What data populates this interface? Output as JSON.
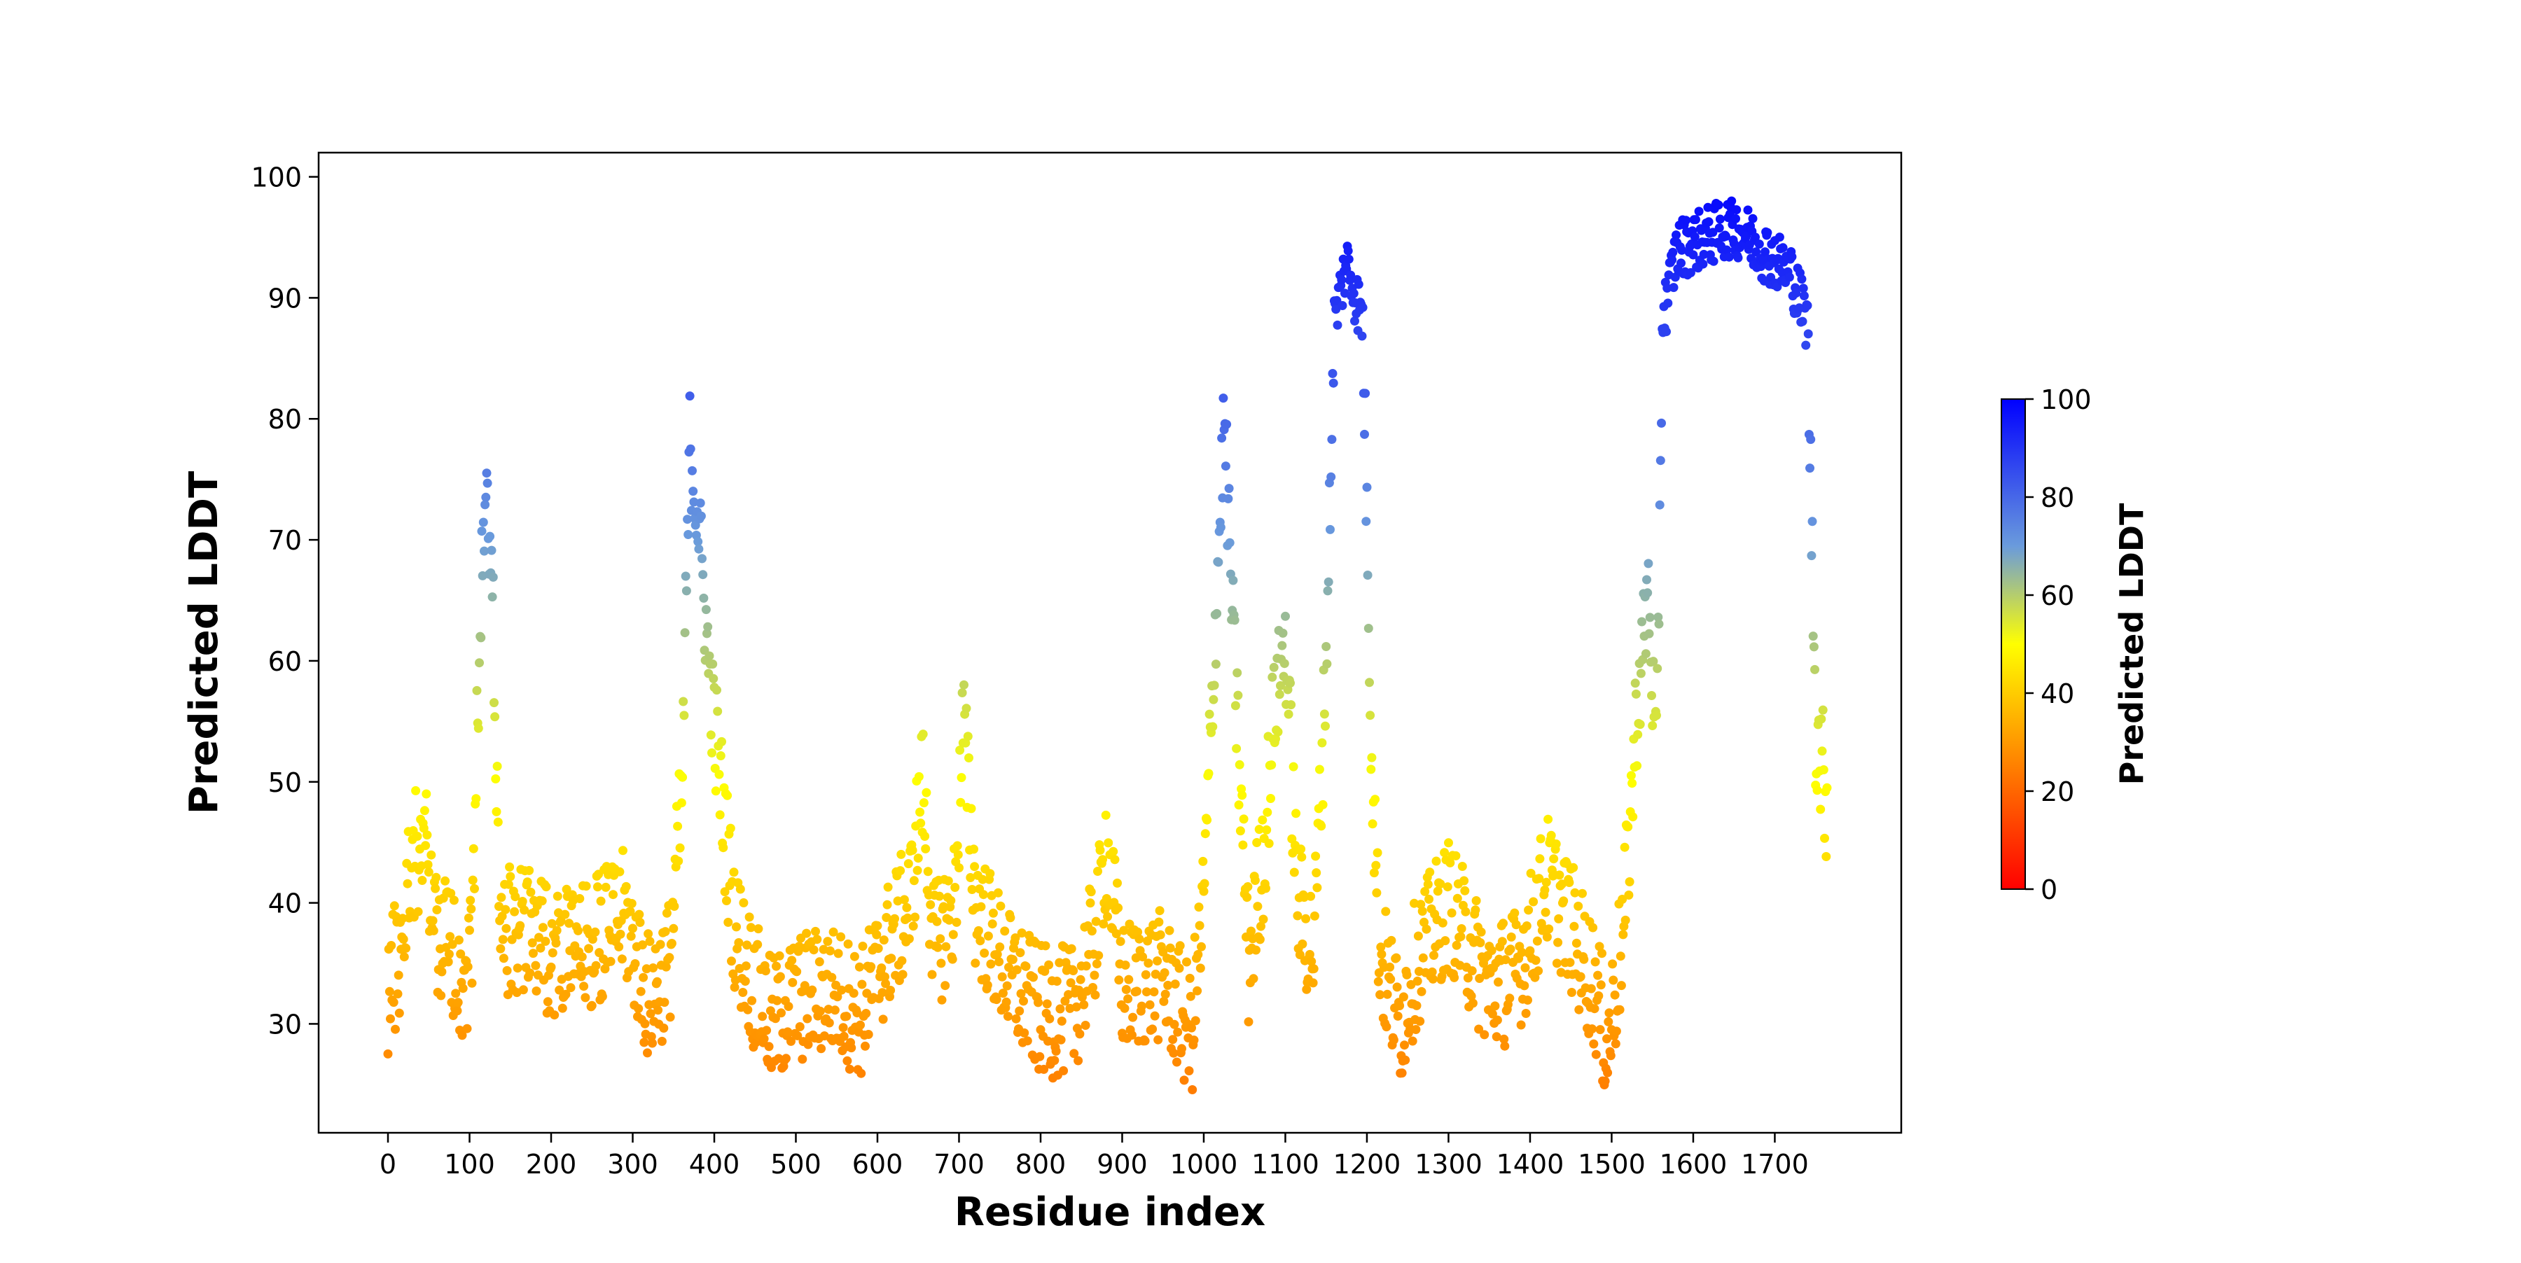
{
  "chart_data": {
    "type": "scatter",
    "xlabel": "Residue index",
    "ylabel": "Predicted LDDT",
    "xlim": [
      -85,
      1855
    ],
    "ylim": [
      21,
      102
    ],
    "xticks": [
      0,
      100,
      200,
      300,
      400,
      500,
      600,
      700,
      800,
      900,
      1000,
      1100,
      1200,
      1300,
      1400,
      1500,
      1600,
      1700
    ],
    "yticks": [
      30,
      40,
      50,
      60,
      70,
      80,
      90,
      100
    ],
    "grid": false,
    "legend": "none",
    "colormap": {
      "label": "Predicted LDDT",
      "range": [
        0,
        100
      ],
      "ticks": [
        0,
        20,
        40,
        60,
        80,
        100
      ],
      "stops": [
        {
          "at": 0,
          "color": "#ff0000"
        },
        {
          "at": 50,
          "color": "#ffff00"
        },
        {
          "at": 70,
          "color": "#6a9bdc"
        },
        {
          "at": 100,
          "color": "#0000ff"
        }
      ]
    },
    "n_residues": 1765,
    "profile": [
      [
        0,
        33
      ],
      [
        15,
        36
      ],
      [
        30,
        44
      ],
      [
        45,
        45
      ],
      [
        60,
        38
      ],
      [
        80,
        36
      ],
      [
        95,
        33
      ],
      [
        105,
        40
      ],
      [
        112,
        62
      ],
      [
        120,
        74
      ],
      [
        128,
        66
      ],
      [
        138,
        37
      ],
      [
        160,
        38
      ],
      [
        200,
        36
      ],
      [
        240,
        36
      ],
      [
        290,
        39
      ],
      [
        320,
        32
      ],
      [
        345,
        35
      ],
      [
        360,
        48
      ],
      [
        370,
        78
      ],
      [
        380,
        72
      ],
      [
        395,
        58
      ],
      [
        410,
        48
      ],
      [
        425,
        38
      ],
      [
        450,
        33
      ],
      [
        470,
        30
      ],
      [
        500,
        32
      ],
      [
        540,
        33
      ],
      [
        580,
        31
      ],
      [
        610,
        36
      ],
      [
        640,
        40
      ],
      [
        655,
        50
      ],
      [
        670,
        36
      ],
      [
        695,
        40
      ],
      [
        705,
        55
      ],
      [
        720,
        40
      ],
      [
        760,
        34
      ],
      [
        800,
        31
      ],
      [
        840,
        31
      ],
      [
        870,
        38
      ],
      [
        880,
        45
      ],
      [
        900,
        33
      ],
      [
        950,
        34
      ],
      [
        985,
        29
      ],
      [
        1000,
        40
      ],
      [
        1010,
        56
      ],
      [
        1025,
        80
      ],
      [
        1040,
        56
      ],
      [
        1055,
        35
      ],
      [
        1075,
        45
      ],
      [
        1085,
        55
      ],
      [
        1100,
        62
      ],
      [
        1115,
        40
      ],
      [
        1135,
        36
      ],
      [
        1150,
        60
      ],
      [
        1160,
        88
      ],
      [
        1175,
        93
      ],
      [
        1195,
        88
      ],
      [
        1205,
        55
      ],
      [
        1215,
        36
      ],
      [
        1240,
        30
      ],
      [
        1260,
        35
      ],
      [
        1300,
        40
      ],
      [
        1350,
        33
      ],
      [
        1380,
        34
      ],
      [
        1400,
        37
      ],
      [
        1420,
        42
      ],
      [
        1450,
        38
      ],
      [
        1480,
        33
      ],
      [
        1495,
        28
      ],
      [
        1515,
        38
      ],
      [
        1530,
        55
      ],
      [
        1545,
        66
      ],
      [
        1555,
        50
      ],
      [
        1562,
        88
      ],
      [
        1580,
        94
      ],
      [
        1650,
        96
      ],
      [
        1720,
        92
      ],
      [
        1740,
        88
      ],
      [
        1750,
        55
      ],
      [
        1765,
        48
      ]
    ]
  }
}
